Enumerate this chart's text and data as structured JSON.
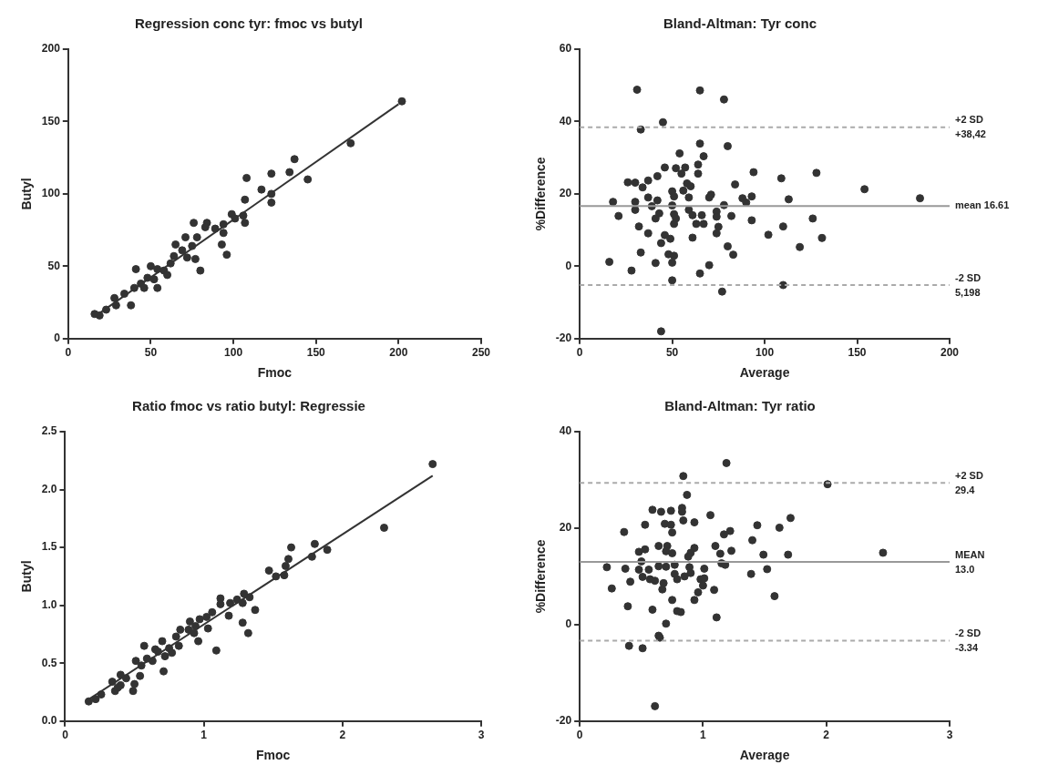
{
  "chart_data": [
    {
      "type": "scatter",
      "title": "Regression conc tyr: fmoc vs butyl",
      "xlabel": "Fmoc",
      "ylabel": "Butyl",
      "xlim": [
        0,
        250
      ],
      "xticks": [
        0,
        50,
        100,
        150,
        200,
        250
      ],
      "ylim": [
        0,
        200
      ],
      "yticks": [
        0,
        50,
        100,
        150,
        200
      ],
      "marker": "circle",
      "series": [
        {
          "type": "scatter",
          "color": "#333333",
          "x": [
            202,
            171,
            137,
            134,
            145,
            123,
            123,
            123,
            108,
            117,
            107,
            107,
            99,
            94,
            93,
            96,
            89,
            84,
            83,
            76,
            78,
            71,
            65,
            75,
            72,
            77,
            80,
            64,
            62,
            58,
            54,
            50,
            54,
            41,
            48,
            44,
            40,
            38,
            34,
            28,
            29,
            23,
            19,
            16,
            94,
            101,
            106,
            60,
            46,
            52,
            69
          ],
          "values": [
            164,
            135,
            124,
            115,
            110,
            114,
            94,
            100,
            111,
            103,
            96,
            80,
            86,
            73,
            65,
            58,
            76,
            80,
            77,
            80,
            70,
            70,
            65,
            64,
            56,
            55,
            47,
            57,
            52,
            47,
            48,
            50,
            35,
            48,
            42,
            38,
            35,
            23,
            31,
            28,
            23,
            20,
            16,
            17,
            79,
            83,
            85,
            44,
            35,
            41,
            61
          ]
        },
        {
          "type": "line",
          "color": "#333333",
          "marker": "none",
          "x": [
            17,
            200
          ],
          "values": [
            16,
            162
          ]
        }
      ]
    },
    {
      "type": "scatter",
      "title": "Bland-Altman: Tyr conc",
      "xlabel": "Average",
      "ylabel": "%Difference",
      "xlim": [
        0,
        200
      ],
      "xticks": [
        0,
        50,
        100,
        150,
        200
      ],
      "ylim": [
        -20,
        60
      ],
      "yticks": [
        -20,
        0,
        20,
        40,
        60
      ],
      "marker": "circle",
      "series": [
        {
          "type": "scatter",
          "color": "#333333",
          "x": [
            31,
            65,
            78,
            45,
            33,
            65,
            80,
            54,
            67,
            46,
            52,
            57,
            64,
            64,
            55,
            42,
            94,
            128,
            109,
            154,
            184,
            26,
            30,
            37,
            34,
            58,
            60,
            56,
            50,
            51,
            59,
            37,
            42,
            18,
            30,
            71,
            70,
            84,
            88,
            93,
            90,
            113,
            78,
            50,
            39,
            30,
            21,
            43,
            41,
            51,
            52,
            59,
            61,
            66,
            74,
            74,
            82,
            126,
            32,
            51,
            63,
            67,
            93,
            110,
            75,
            37,
            74,
            46,
            102,
            49,
            61,
            131,
            44,
            80,
            119,
            33,
            48,
            51,
            83,
            16,
            41,
            50,
            70,
            28,
            65,
            50,
            110,
            77,
            44
          ],
          "values": [
            48.8,
            48.6,
            46.1,
            39.8,
            37.8,
            33.9,
            33.2,
            31.2,
            30.4,
            27.3,
            27.1,
            27.3,
            28.1,
            25.6,
            25.6,
            24.9,
            26.0,
            25.8,
            24.3,
            21.3,
            18.8,
            23.2,
            23.1,
            23.7,
            21.8,
            22.9,
            22.1,
            20.9,
            20.7,
            19.3,
            19.0,
            19.0,
            18.2,
            17.8,
            17.8,
            19.8,
            19.0,
            22.6,
            18.8,
            19.3,
            17.6,
            18.5,
            16.9,
            16.8,
            16.6,
            15.6,
            13.9,
            14.6,
            13.2,
            14.4,
            13.2,
            15.6,
            14.1,
            14.1,
            15.1,
            13.7,
            13.9,
            13.2,
            11.0,
            11.7,
            11.7,
            11.7,
            12.7,
            11.0,
            10.9,
            9.1,
            9.1,
            8.6,
            8.7,
            7.6,
            7.9,
            7.8,
            6.4,
            5.5,
            5.3,
            3.8,
            3.3,
            2.9,
            3.2,
            1.2,
            0.9,
            1.0,
            0.3,
            -1.2,
            -2.0,
            -3.9,
            -5.2,
            -7.0,
            -18.0
          ]
        }
      ],
      "ref_lines": [
        {
          "axis": "y",
          "value": 38.42,
          "label": "+2 SD\n+38,42",
          "color": "#aaaaaa",
          "line_style": "dashed"
        },
        {
          "axis": "y",
          "value": 16.61,
          "label": "mean 16.61",
          "color": "#999999",
          "line_style": "solid"
        },
        {
          "axis": "y",
          "value": -5.198,
          "label": "-2 SD\n5,198",
          "color": "#aaaaaa",
          "line_style": "dashed"
        }
      ]
    },
    {
      "type": "scatter",
      "title": "Ratio fmoc vs ratio butyl: Regressie",
      "xlabel": "Fmoc",
      "ylabel": "Butyl",
      "xlim": [
        0,
        3
      ],
      "xticks": [
        0,
        1,
        2,
        3
      ],
      "ylim": [
        0,
        2.5
      ],
      "yticks": [
        {
          "value": 0,
          "label": "0.0"
        },
        0.5,
        {
          "value": 1,
          "label": "1.0"
        },
        1.5,
        {
          "value": 2,
          "label": "2.0"
        },
        2.5
      ],
      "marker": "circle",
      "series": [
        {
          "type": "scatter",
          "color": "#333333",
          "x": [
            2.65,
            2.3,
            1.89,
            1.8,
            1.78,
            1.63,
            1.61,
            1.59,
            1.58,
            1.52,
            1.47,
            1.33,
            1.29,
            1.24,
            1.28,
            1.37,
            1.28,
            1.32,
            1.12,
            1.12,
            1.18,
            1.09,
            1.06,
            1.02,
            0.97,
            1.03,
            0.94,
            0.96,
            0.89,
            0.83,
            0.8,
            0.82,
            0.75,
            0.7,
            0.72,
            0.71,
            0.65,
            0.63,
            0.57,
            0.59,
            0.55,
            0.51,
            0.54,
            0.49,
            0.5,
            0.44,
            0.4,
            0.4,
            0.36,
            0.34,
            0.38,
            0.26,
            0.22,
            0.17,
            0.67,
            0.77,
            0.93,
            0.9,
            1.19
          ],
          "values": [
            2.22,
            1.67,
            1.48,
            1.53,
            1.42,
            1.5,
            1.4,
            1.34,
            1.26,
            1.25,
            1.3,
            1.07,
            1.1,
            1.05,
            1.02,
            0.96,
            0.85,
            0.76,
            1.06,
            1.01,
            0.91,
            0.61,
            0.94,
            0.9,
            0.88,
            0.8,
            0.82,
            0.69,
            0.79,
            0.79,
            0.73,
            0.65,
            0.63,
            0.69,
            0.56,
            0.43,
            0.62,
            0.52,
            0.65,
            0.54,
            0.48,
            0.52,
            0.39,
            0.26,
            0.32,
            0.37,
            0.4,
            0.31,
            0.26,
            0.34,
            0.29,
            0.23,
            0.19,
            0.17,
            0.6,
            0.59,
            0.76,
            0.86,
            1.02
          ]
        },
        {
          "type": "line",
          "color": "#333333",
          "marker": "none",
          "x": [
            0.16,
            2.65
          ],
          "values": [
            0.18,
            2.12
          ]
        }
      ]
    },
    {
      "type": "scatter",
      "title": "Bland-Altman: Tyr ratio",
      "xlabel": "Average",
      "ylabel": "%Difference",
      "xlim": [
        0,
        3
      ],
      "xticks": [
        0,
        1,
        2,
        3
      ],
      "ylim": [
        -20,
        40
      ],
      "yticks": [
        -20,
        0,
        20,
        40
      ],
      "marker": "circle",
      "series": [
        {
          "type": "scatter",
          "color": "#333333",
          "x": [
            1.19,
            0.84,
            2.01,
            0.87,
            0.59,
            0.66,
            0.74,
            0.83,
            0.83,
            1.06,
            1.71,
            0.84,
            0.93,
            0.53,
            0.69,
            0.74,
            1.44,
            1.62,
            0.36,
            0.75,
            1.22,
            1.17,
            1.4,
            0.64,
            0.71,
            0.93,
            0.53,
            0.48,
            0.7,
            0.75,
            0.9,
            0.88,
            1.23,
            1.1,
            1.14,
            1.49,
            1.69,
            2.46,
            0.5,
            0.22,
            0.37,
            0.48,
            0.56,
            0.64,
            0.7,
            0.77,
            0.89,
            1.01,
            1.15,
            1.18,
            1.52,
            0.9,
            0.77,
            1.39,
            0.51,
            0.57,
            0.61,
            0.79,
            0.85,
            0.98,
            1.01,
            0.41,
            0.68,
            0.26,
            0.67,
            1.0,
            0.96,
            1.09,
            1.58,
            0.75,
            0.93,
            0.39,
            0.59,
            0.79,
            0.82,
            1.11,
            0.7,
            0.64,
            0.65,
            0.4,
            0.51,
            0.61
          ],
          "values": [
            33.5,
            30.8,
            29.1,
            26.9,
            23.8,
            23.4,
            23.6,
            24.2,
            23.4,
            22.7,
            22.1,
            21.6,
            21.2,
            20.7,
            20.9,
            20.7,
            20.6,
            20.1,
            19.2,
            19.1,
            19.4,
            18.7,
            17.5,
            16.3,
            16.3,
            15.9,
            15.6,
            15.1,
            15.2,
            14.8,
            14.9,
            14.1,
            15.3,
            16.3,
            14.7,
            14.5,
            14.5,
            14.9,
            13.1,
            11.9,
            11.6,
            11.4,
            11.4,
            12.1,
            12.0,
            12.4,
            11.9,
            11.6,
            12.7,
            12.4,
            11.5,
            10.7,
            10.5,
            10.5,
            9.9,
            9.4,
            9.1,
            9.4,
            10.0,
            9.4,
            9.6,
            8.9,
            8.6,
            7.5,
            7.3,
            8.1,
            6.7,
            7.2,
            5.9,
            5.1,
            5.1,
            3.8,
            3.1,
            2.8,
            2.6,
            1.5,
            0.2,
            -2.3,
            -2.7,
            -4.4,
            -4.9,
            -16.9
          ]
        }
      ],
      "ref_lines": [
        {
          "axis": "y",
          "value": 29.4,
          "label": "+2 SD\n29.4",
          "color": "#aaaaaa",
          "line_style": "dashed"
        },
        {
          "axis": "y",
          "value": 13.0,
          "label": "MEAN\n13.0",
          "color": "#999999",
          "line_style": "solid"
        },
        {
          "axis": "y",
          "value": -3.34,
          "label": "-2 SD\n-3.34",
          "color": "#aaaaaa",
          "line_style": "dashed"
        }
      ]
    }
  ]
}
